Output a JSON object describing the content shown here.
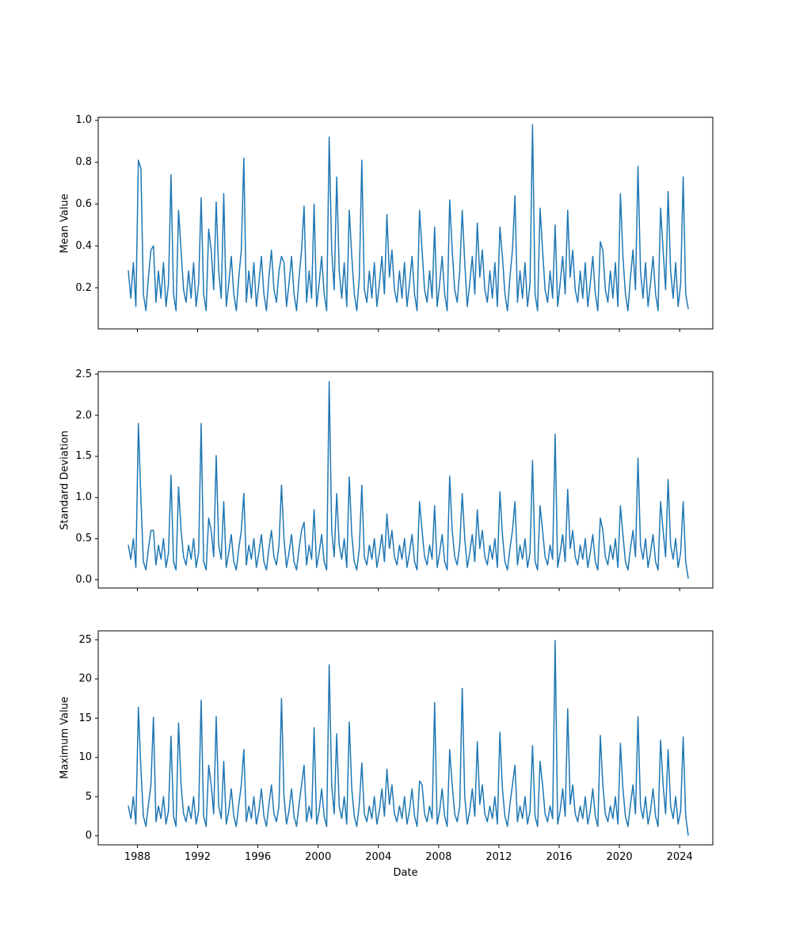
{
  "figure": {
    "background": "#ffffff",
    "line_color": "#1f77b4",
    "axis_color": "#000000"
  },
  "chart_data": {
    "type": "line",
    "title": "",
    "legend": "none",
    "grid": "off",
    "x_axis": {
      "label": "Date",
      "unit": "year",
      "start": 1987.4,
      "step": 0.166667,
      "lim": [
        1985.4,
        2026.2
      ],
      "ticks": [
        1988,
        1992,
        1996,
        2000,
        2004,
        2008,
        2012,
        2016,
        2020,
        2024
      ],
      "tick_labels": [
        "1988",
        "1992",
        "1996",
        "2000",
        "2004",
        "2008",
        "2012",
        "2016",
        "2020",
        "2024"
      ]
    },
    "subplots": [
      {
        "ylabel": "Mean Value",
        "ylim": [
          0.003,
          1.015
        ],
        "yticks": [
          0.2,
          0.4,
          0.6,
          0.8,
          1.0
        ],
        "ytick_labels": [
          "0.2",
          "0.4",
          "0.6",
          "0.8",
          "1.0"
        ],
        "values": [
          0.28,
          0.15,
          0.32,
          0.11,
          0.81,
          0.77,
          0.17,
          0.09,
          0.25,
          0.38,
          0.4,
          0.13,
          0.28,
          0.15,
          0.32,
          0.11,
          0.22,
          0.74,
          0.17,
          0.09,
          0.57,
          0.38,
          0.19,
          0.13,
          0.28,
          0.15,
          0.32,
          0.11,
          0.22,
          0.63,
          0.17,
          0.09,
          0.48,
          0.38,
          0.19,
          0.61,
          0.28,
          0.15,
          0.65,
          0.11,
          0.22,
          0.35,
          0.17,
          0.09,
          0.25,
          0.38,
          0.82,
          0.13,
          0.28,
          0.15,
          0.32,
          0.11,
          0.22,
          0.35,
          0.17,
          0.09,
          0.25,
          0.38,
          0.19,
          0.13,
          0.28,
          0.35,
          0.32,
          0.11,
          0.22,
          0.35,
          0.17,
          0.09,
          0.25,
          0.38,
          0.59,
          0.13,
          0.28,
          0.15,
          0.6,
          0.11,
          0.22,
          0.35,
          0.17,
          0.09,
          0.92,
          0.38,
          0.19,
          0.73,
          0.28,
          0.15,
          0.32,
          0.11,
          0.57,
          0.35,
          0.17,
          0.09,
          0.25,
          0.81,
          0.19,
          0.13,
          0.28,
          0.15,
          0.32,
          0.11,
          0.22,
          0.35,
          0.17,
          0.55,
          0.25,
          0.38,
          0.19,
          0.13,
          0.28,
          0.15,
          0.32,
          0.11,
          0.22,
          0.35,
          0.17,
          0.09,
          0.57,
          0.38,
          0.19,
          0.13,
          0.28,
          0.15,
          0.49,
          0.11,
          0.22,
          0.35,
          0.17,
          0.09,
          0.62,
          0.38,
          0.19,
          0.13,
          0.28,
          0.57,
          0.32,
          0.11,
          0.22,
          0.35,
          0.17,
          0.51,
          0.25,
          0.38,
          0.19,
          0.13,
          0.28,
          0.15,
          0.32,
          0.11,
          0.49,
          0.35,
          0.17,
          0.09,
          0.25,
          0.38,
          0.64,
          0.13,
          0.28,
          0.15,
          0.32,
          0.11,
          0.22,
          0.98,
          0.17,
          0.09,
          0.58,
          0.38,
          0.19,
          0.13,
          0.28,
          0.15,
          0.5,
          0.11,
          0.22,
          0.35,
          0.17,
          0.57,
          0.25,
          0.38,
          0.19,
          0.13,
          0.28,
          0.15,
          0.32,
          0.11,
          0.22,
          0.35,
          0.17,
          0.09,
          0.42,
          0.38,
          0.19,
          0.13,
          0.28,
          0.15,
          0.32,
          0.11,
          0.65,
          0.35,
          0.17,
          0.09,
          0.25,
          0.38,
          0.19,
          0.78,
          0.28,
          0.15,
          0.32,
          0.11,
          0.22,
          0.35,
          0.17,
          0.09,
          0.58,
          0.38,
          0.19,
          0.66,
          0.28,
          0.15,
          0.32,
          0.11,
          0.22,
          0.73,
          0.17,
          0.1
        ]
      },
      {
        "ylabel": "Standard Deviation",
        "ylim": [
          -0.1,
          2.53
        ],
        "yticks": [
          0.0,
          0.5,
          1.0,
          1.5,
          2.0,
          2.5
        ],
        "ytick_labels": [
          "0.0",
          "0.5",
          "1.0",
          "1.5",
          "2.0",
          "2.5"
        ],
        "values": [
          0.42,
          0.25,
          0.5,
          0.15,
          1.9,
          0.99,
          0.22,
          0.12,
          0.38,
          0.6,
          0.6,
          0.18,
          0.42,
          0.25,
          0.5,
          0.15,
          0.33,
          1.27,
          0.22,
          0.12,
          1.13,
          0.6,
          0.28,
          0.18,
          0.42,
          0.25,
          0.5,
          0.15,
          0.33,
          1.9,
          0.22,
          0.12,
          0.75,
          0.6,
          0.28,
          1.51,
          0.42,
          0.25,
          0.95,
          0.15,
          0.33,
          0.55,
          0.22,
          0.12,
          0.38,
          0.6,
          1.05,
          0.18,
          0.42,
          0.25,
          0.5,
          0.15,
          0.33,
          0.55,
          0.22,
          0.12,
          0.38,
          0.6,
          0.28,
          0.18,
          0.42,
          1.15,
          0.5,
          0.15,
          0.33,
          0.55,
          0.22,
          0.12,
          0.38,
          0.6,
          0.7,
          0.18,
          0.42,
          0.25,
          0.85,
          0.15,
          0.33,
          0.55,
          0.22,
          0.12,
          2.41,
          0.6,
          0.28,
          1.05,
          0.42,
          0.25,
          0.5,
          0.15,
          1.25,
          0.55,
          0.22,
          0.12,
          0.38,
          1.15,
          0.28,
          0.18,
          0.42,
          0.25,
          0.5,
          0.15,
          0.33,
          0.55,
          0.22,
          0.8,
          0.38,
          0.6,
          0.28,
          0.18,
          0.42,
          0.25,
          0.5,
          0.15,
          0.33,
          0.55,
          0.22,
          0.12,
          0.95,
          0.6,
          0.28,
          0.18,
          0.42,
          0.25,
          0.9,
          0.15,
          0.33,
          0.55,
          0.22,
          0.12,
          1.26,
          0.6,
          0.28,
          0.18,
          0.42,
          1.05,
          0.5,
          0.15,
          0.33,
          0.55,
          0.22,
          0.85,
          0.38,
          0.6,
          0.28,
          0.18,
          0.42,
          0.25,
          0.5,
          0.15,
          1.07,
          0.55,
          0.22,
          0.12,
          0.38,
          0.6,
          0.95,
          0.18,
          0.42,
          0.25,
          0.5,
          0.15,
          0.33,
          1.45,
          0.22,
          0.12,
          0.9,
          0.6,
          0.28,
          0.18,
          0.42,
          0.25,
          1.77,
          0.15,
          0.33,
          0.55,
          0.22,
          1.1,
          0.38,
          0.6,
          0.28,
          0.18,
          0.42,
          0.25,
          0.5,
          0.15,
          0.33,
          0.55,
          0.22,
          0.12,
          0.75,
          0.6,
          0.28,
          0.18,
          0.42,
          0.25,
          0.5,
          0.15,
          0.9,
          0.55,
          0.22,
          0.12,
          0.38,
          0.6,
          0.28,
          1.48,
          0.42,
          0.25,
          0.5,
          0.15,
          0.33,
          0.55,
          0.22,
          0.12,
          0.95,
          0.6,
          0.28,
          1.22,
          0.42,
          0.25,
          0.5,
          0.15,
          0.33,
          0.95,
          0.22,
          0.02
        ]
      },
      {
        "ylabel": "Maximum Value",
        "ylim": [
          -1.14,
          26.14
        ],
        "yticks": [
          0,
          5,
          10,
          15,
          20,
          25
        ],
        "ytick_labels": [
          "0",
          "5",
          "10",
          "15",
          "20",
          "25"
        ],
        "values": [
          3.8,
          2.2,
          5.0,
          1.5,
          16.4,
          8.6,
          2.5,
          1.2,
          4.0,
          6.5,
          15.1,
          1.8,
          3.8,
          2.2,
          5.0,
          1.5,
          3.2,
          12.7,
          2.5,
          1.2,
          14.4,
          6.5,
          2.8,
          1.8,
          3.8,
          2.2,
          5.0,
          1.5,
          3.2,
          17.3,
          2.5,
          1.2,
          9.0,
          6.5,
          2.8,
          15.2,
          3.8,
          2.2,
          9.5,
          1.5,
          3.2,
          6.0,
          2.5,
          1.2,
          4.0,
          6.5,
          11.0,
          1.8,
          3.8,
          2.2,
          5.0,
          1.5,
          3.2,
          6.0,
          2.5,
          1.2,
          4.0,
          6.5,
          2.8,
          1.8,
          3.8,
          17.5,
          5.0,
          1.5,
          3.2,
          6.0,
          2.5,
          1.2,
          4.0,
          6.5,
          9.0,
          1.8,
          3.8,
          2.2,
          13.8,
          1.5,
          3.2,
          6.0,
          2.5,
          1.2,
          21.8,
          6.5,
          2.8,
          13.0,
          3.8,
          2.2,
          5.0,
          1.5,
          14.5,
          6.0,
          2.5,
          1.2,
          4.0,
          9.3,
          2.8,
          1.8,
          3.8,
          2.2,
          5.0,
          1.5,
          3.2,
          6.0,
          2.5,
          8.5,
          4.0,
          6.5,
          2.8,
          1.8,
          3.8,
          2.2,
          5.0,
          1.5,
          3.2,
          6.0,
          2.5,
          1.2,
          7.0,
          6.5,
          2.8,
          1.8,
          3.8,
          2.2,
          17.0,
          1.5,
          3.2,
          6.0,
          2.5,
          1.2,
          11.0,
          6.5,
          2.8,
          1.8,
          3.8,
          18.8,
          5.0,
          1.5,
          3.2,
          6.0,
          2.5,
          12.0,
          4.0,
          6.5,
          2.8,
          1.8,
          3.8,
          2.2,
          5.0,
          1.5,
          13.2,
          6.0,
          2.5,
          1.2,
          4.0,
          6.5,
          9.0,
          1.8,
          3.8,
          2.2,
          5.0,
          1.5,
          3.2,
          11.5,
          2.5,
          1.2,
          9.5,
          6.5,
          2.8,
          1.8,
          3.8,
          2.2,
          24.9,
          1.5,
          3.2,
          6.0,
          2.5,
          16.2,
          4.0,
          6.5,
          2.8,
          1.8,
          3.8,
          2.2,
          5.0,
          1.5,
          3.2,
          6.0,
          2.5,
          1.2,
          12.8,
          6.5,
          2.8,
          1.8,
          3.8,
          2.2,
          5.0,
          1.5,
          11.8,
          6.0,
          2.5,
          1.2,
          4.0,
          6.5,
          2.8,
          15.2,
          3.8,
          2.2,
          5.0,
          1.5,
          3.2,
          6.0,
          2.5,
          1.2,
          12.2,
          6.5,
          2.8,
          11.0,
          3.8,
          2.2,
          5.0,
          1.5,
          3.2,
          12.6,
          2.5,
          0.1
        ]
      }
    ]
  }
}
